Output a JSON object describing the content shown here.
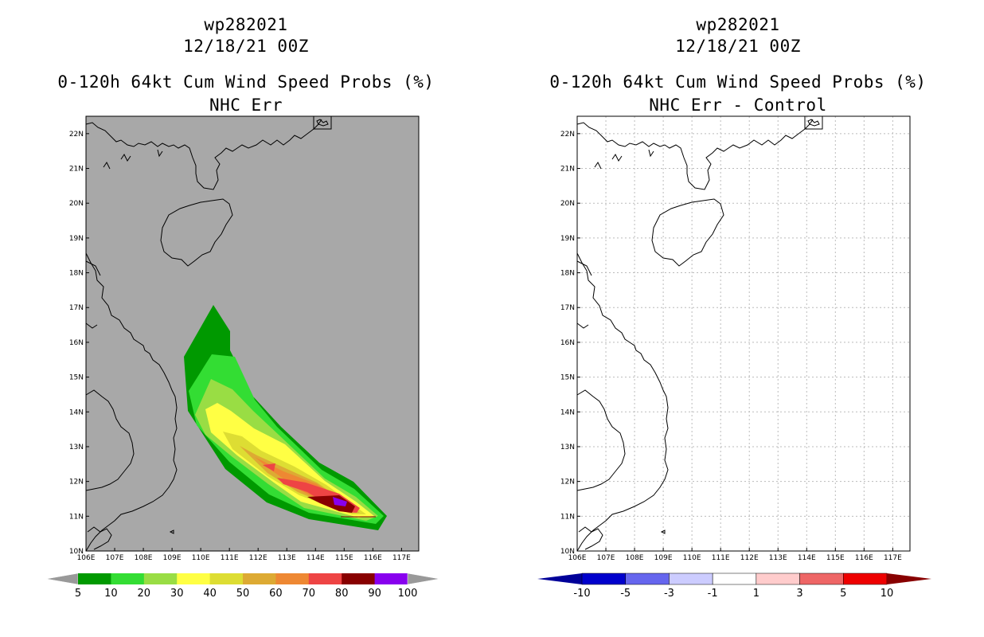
{
  "left_panel": {
    "storm_id": "wp282021",
    "datetime": "12/18/21 00Z",
    "product": "0-120h 64kt Cum Wind Speed Probs (%)",
    "subtitle": "NHC Err",
    "background_color": "#a8a8a8",
    "colorbar": {
      "labels": [
        "5",
        "10",
        "20",
        "30",
        "40",
        "50",
        "60",
        "70",
        "80",
        "90",
        "100"
      ],
      "colors": [
        "#009900",
        "#33dd33",
        "#99dd44",
        "#ffff44",
        "#dddd33",
        "#ddaa33",
        "#ee8833",
        "#ee4444",
        "#880000",
        "#8800ee"
      ],
      "arrow_color": "#999999"
    }
  },
  "right_panel": {
    "storm_id": "wp282021",
    "datetime": "12/18/21 00Z",
    "product": "0-120h 64kt Cum Wind Speed Probs (%)",
    "subtitle": "NHC Err - Control",
    "background_color": "#ffffff",
    "colorbar": {
      "labels": [
        "-10",
        "-5",
        "-3",
        "-1",
        "1",
        "3",
        "5",
        "10"
      ],
      "colors": [
        "#0000cc",
        "#6666ee",
        "#ccccff",
        "#ffffff",
        "#ffcccc",
        "#ee6666",
        "#ee0000"
      ],
      "low_arrow_color": "#000099",
      "high_arrow_color": "#880000"
    }
  },
  "axes": {
    "lon_labels": [
      "106E",
      "107E",
      "108E",
      "109E",
      "110E",
      "111E",
      "112E",
      "113E",
      "114E",
      "115E",
      "116E",
      "117E"
    ],
    "lat_labels": [
      "10N",
      "11N",
      "12N",
      "13N",
      "14N",
      "15N",
      "16N",
      "17N",
      "18N",
      "19N",
      "20N",
      "21N",
      "22N"
    ],
    "lon_range": [
      106,
      117.6
    ],
    "lat_range": [
      10,
      22.5
    ]
  }
}
